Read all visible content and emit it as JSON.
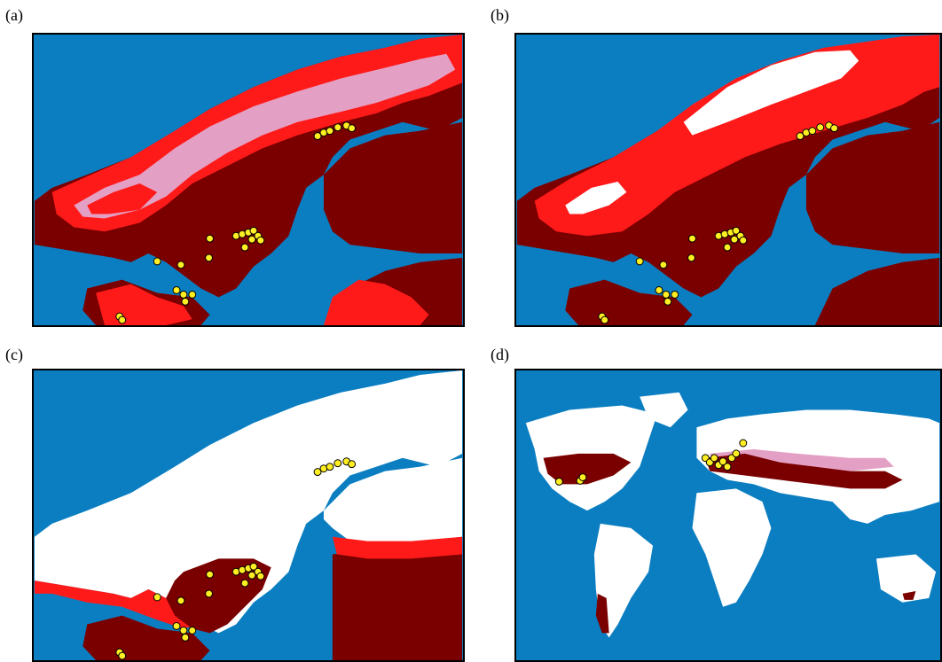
{
  "panels": [
    {
      "label": "(a)",
      "colors": {
        "land": "#7a0000",
        "suitable": "#ff1a1a",
        "pink": "#e4a0c4",
        "unsuitable": "#ffffff"
      }
    },
    {
      "label": "(b)"
    },
    {
      "label": "(c)"
    },
    {
      "label": "(d)"
    }
  ],
  "colors": {
    "sea": "#0b7ec1",
    "high_suitability": "#7a0000",
    "medium_suitability": "#ff1a1a",
    "low_suitability": "#e8a6cc",
    "not_suitable": "#ffffff",
    "occurrence_point": "#ffee22"
  },
  "legend_icon": "occurrence-point-marker"
}
